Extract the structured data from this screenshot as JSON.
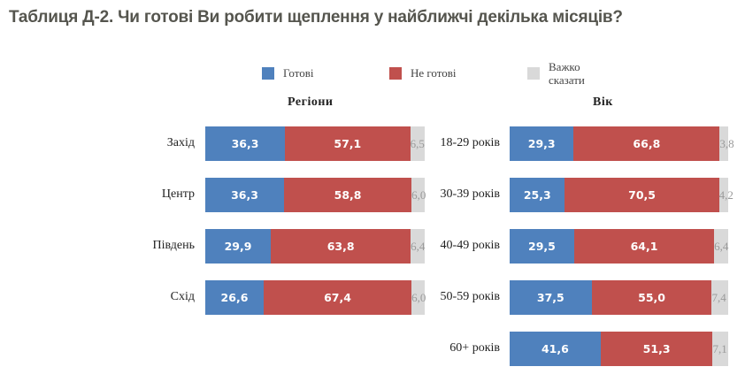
{
  "title": "Таблиця Д-2. Чи готові Ви робити щеплення у найближчі декілька місяців?",
  "colors": {
    "ready": "#4f81bd",
    "not_ready": "#c0504d",
    "hard_to_say": "#d9d9d9"
  },
  "legend": [
    {
      "label": "Готові",
      "color": "#4f81bd"
    },
    {
      "label": "Не готові",
      "color": "#c0504d"
    },
    {
      "label": "Важко сказати",
      "line1": "Важко",
      "line2": "сказати",
      "color": "#d9d9d9"
    }
  ],
  "chart_data": [
    {
      "type": "bar",
      "orientation": "horizontal",
      "stacked": true,
      "title": "Регіони",
      "categories": [
        "Захід",
        "Центр",
        "Південь",
        "Схід"
      ],
      "series": [
        {
          "name": "Готові",
          "values": [
            36.3,
            36.3,
            29.9,
            26.6
          ],
          "labels": [
            "36,3",
            "36,3",
            "29,9",
            "26,6"
          ]
        },
        {
          "name": "Не готові",
          "values": [
            57.1,
            58.8,
            63.8,
            67.4
          ],
          "labels": [
            "57,1",
            "58,8",
            "63,8",
            "67,4"
          ]
        },
        {
          "name": "Важко сказати",
          "values": [
            6.5,
            6.0,
            6.4,
            6.0
          ],
          "labels": [
            "6,5",
            "6,0",
            "6,4",
            "6,0"
          ]
        }
      ],
      "xlim": [
        0,
        100
      ],
      "legend": "top",
      "grid": false
    },
    {
      "type": "bar",
      "orientation": "horizontal",
      "stacked": true,
      "title": "Вік",
      "categories": [
        "18-29 років",
        "30-39 років",
        "40-49 років",
        "50-59 років",
        "60+ років"
      ],
      "series": [
        {
          "name": "Готові",
          "values": [
            29.3,
            25.3,
            29.5,
            37.5,
            41.6
          ],
          "labels": [
            "29,3",
            "25,3",
            "29,5",
            "37,5",
            "41,6"
          ]
        },
        {
          "name": "Не готові",
          "values": [
            66.8,
            70.5,
            64.1,
            55.0,
            51.3
          ],
          "labels": [
            "66,8",
            "70,5",
            "64,1",
            "55,0",
            "51,3"
          ]
        },
        {
          "name": "Важко сказати",
          "values": [
            3.8,
            4.2,
            6.4,
            7.4,
            7.1
          ],
          "labels": [
            "3,8",
            "4,2",
            "6,4",
            "7,4",
            "7,1"
          ]
        }
      ],
      "xlim": [
        0,
        100
      ],
      "legend": "top",
      "grid": false
    }
  ]
}
